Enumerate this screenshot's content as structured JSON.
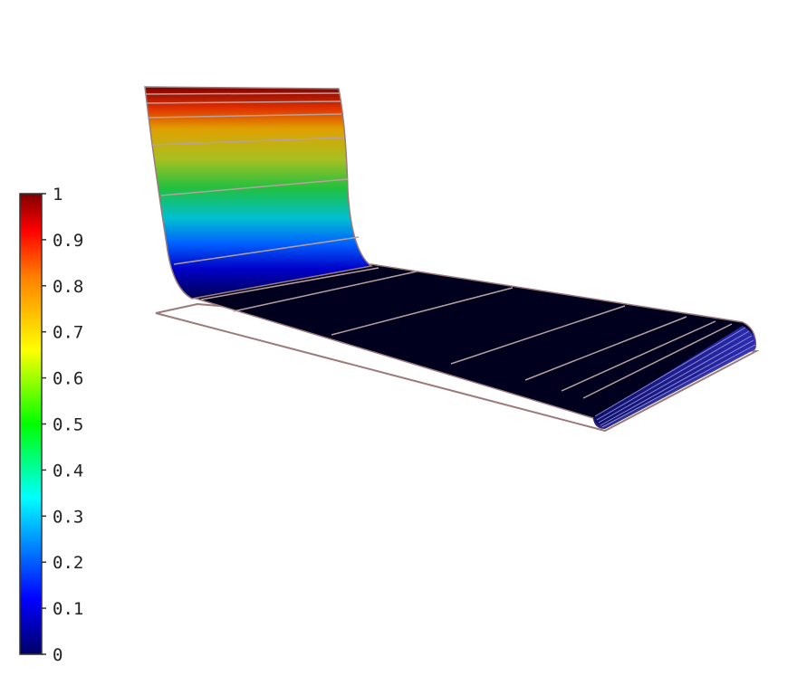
{
  "chart_data": {
    "type": "surface",
    "colormap": [
      "#000066",
      "#0000ff",
      "#00ffff",
      "#00ff00",
      "#ffff00",
      "#ff7f00",
      "#ff0000",
      "#7f0000"
    ],
    "colorbar": {
      "range": [
        0,
        1
      ],
      "ticks": [
        {
          "value": 0,
          "label": "0"
        },
        {
          "value": 0.1,
          "label": "0.1"
        },
        {
          "value": 0.2,
          "label": "0.2"
        },
        {
          "value": 0.3,
          "label": "0.3"
        },
        {
          "value": 0.4,
          "label": "0.4"
        },
        {
          "value": 0.5,
          "label": "0.5"
        },
        {
          "value": 0.6,
          "label": "0.6"
        },
        {
          "value": 0.7,
          "label": "0.7"
        },
        {
          "value": 0.8,
          "label": "0.8"
        },
        {
          "value": 0.9,
          "label": "0.9"
        },
        {
          "value": 1,
          "label": "1"
        }
      ]
    },
    "surface": {
      "description_shape": "rising wall at back-left, flat floor at value 0",
      "wall_contour_levels": [
        0.2,
        0.4,
        0.6,
        0.8,
        0.9,
        0.95
      ],
      "floor_value": 0
    },
    "colors": {
      "edge": "#9c7a7a",
      "contour": "#b8a0a0",
      "floor": "#00001e",
      "floor_edge_strip": "#2020a0"
    }
  }
}
